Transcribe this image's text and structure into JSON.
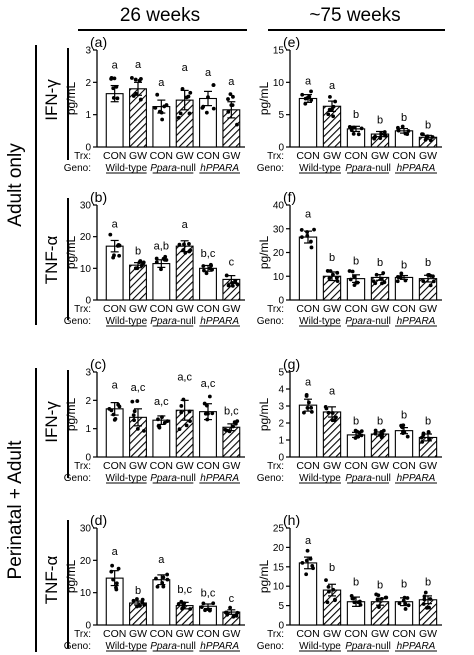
{
  "figure": {
    "col_titles": [
      "26 weeks",
      "~75 weeks"
    ],
    "group_labels": [
      "Adult only",
      "Perinatal + Adult"
    ],
    "row_labels": [
      "IFN-γ",
      "TNF-α",
      "IFN-γ",
      "TNF-α"
    ],
    "trx_label": "Trx:",
    "geno_label": "Geno:",
    "trx_values": [
      "CON",
      "GW"
    ],
    "genotypes": [
      {
        "pre": "",
        "it": "",
        "post": "Wild-type"
      },
      {
        "pre": "",
        "it": "Ppara",
        "post": "-null"
      },
      {
        "pre": "",
        "it": "hPPARA",
        "post": ""
      }
    ],
    "ylabel": "pg/mL"
  },
  "colors": {
    "bar_fill": "#ffffff",
    "hatch_fill": "#ffffff",
    "stroke": "#000000"
  },
  "chart_data": [
    {
      "panel": "(a)",
      "type": "bar",
      "ylabel": "pg/mL",
      "ylim": [
        0,
        3
      ],
      "ticks": [
        0,
        1,
        2,
        3
      ],
      "xlabels": [
        "CON",
        "GW",
        "CON",
        "GW",
        "CON",
        "GW"
      ],
      "values": [
        1.65,
        1.8,
        1.25,
        1.45,
        1.5,
        1.15
      ],
      "errors": [
        0.25,
        0.2,
        0.2,
        0.3,
        0.22,
        0.25
      ],
      "letters": [
        "a",
        "a",
        "a",
        "a",
        "a",
        "a"
      ],
      "hatched": [
        false,
        true,
        false,
        true,
        false,
        true
      ]
    },
    {
      "panel": "(e)",
      "type": "bar",
      "ylabel": "pg/mL",
      "ylim": [
        0,
        15
      ],
      "ticks": [
        0,
        5,
        10,
        15
      ],
      "xlabels": [
        "CON",
        "GW",
        "CON",
        "GW",
        "CON",
        "GW"
      ],
      "values": [
        7.5,
        6.3,
        2.8,
        2.0,
        2.5,
        1.5
      ],
      "errors": [
        0.6,
        0.8,
        0.4,
        0.4,
        0.35,
        0.3
      ],
      "letters": [
        "a",
        "a",
        "b",
        "b",
        "b",
        "b"
      ],
      "hatched": [
        false,
        true,
        false,
        true,
        false,
        true
      ]
    },
    {
      "panel": "(b)",
      "type": "bar",
      "ylabel": "pg/mL",
      "ylim": [
        0,
        30
      ],
      "ticks": [
        0,
        10,
        20,
        30
      ],
      "xlabels": [
        "CON",
        "GW",
        "CON",
        "GW",
        "CON",
        "GW"
      ],
      "values": [
        17,
        11,
        11.5,
        17,
        10,
        6.5
      ],
      "errors": [
        1.8,
        0.8,
        1.2,
        1.7,
        0.9,
        1.2
      ],
      "letters": [
        "a",
        "b",
        "a,b",
        "a",
        "b,c",
        "c"
      ],
      "hatched": [
        false,
        true,
        false,
        true,
        false,
        true
      ]
    },
    {
      "panel": "(f)",
      "type": "bar",
      "ylabel": "pg/mL",
      "ylim": [
        0,
        40
      ],
      "ticks": [
        0,
        10,
        20,
        30,
        40
      ],
      "xlabels": [
        "CON",
        "GW",
        "CON",
        "GW",
        "CON",
        "GW"
      ],
      "values": [
        26.5,
        10,
        9,
        9.5,
        9.5,
        9
      ],
      "errors": [
        2.5,
        1.8,
        1.6,
        1.2,
        0.8,
        1.4
      ],
      "letters": [
        "a",
        "b",
        "b",
        "b",
        "b",
        "b"
      ],
      "hatched": [
        false,
        true,
        false,
        true,
        false,
        true
      ]
    },
    {
      "panel": "(c)",
      "type": "bar",
      "ylabel": "pg/mL",
      "ylim": [
        0,
        3
      ],
      "ticks": [
        0,
        1,
        2,
        3
      ],
      "xlabels": [
        "CON",
        "GW",
        "CON",
        "GW",
        "CON",
        "GW"
      ],
      "values": [
        1.7,
        1.4,
        1.3,
        1.65,
        1.6,
        1.05
      ],
      "errors": [
        0.22,
        0.3,
        0.15,
        0.35,
        0.28,
        0.12
      ],
      "letters": [
        "a",
        "a,c",
        "a,c",
        "a,c",
        "a,c",
        "b,c"
      ],
      "hatched": [
        false,
        true,
        false,
        true,
        false,
        true
      ]
    },
    {
      "panel": "(g)",
      "type": "bar",
      "ylabel": "pg/mL",
      "ylim": [
        0,
        5
      ],
      "ticks": [
        0,
        1,
        2,
        3,
        4,
        5
      ],
      "xlabels": [
        "CON",
        "GW",
        "CON",
        "GW",
        "CON",
        "GW"
      ],
      "values": [
        3.05,
        2.65,
        1.3,
        1.35,
        1.55,
        1.15
      ],
      "errors": [
        0.35,
        0.3,
        0.15,
        0.12,
        0.18,
        0.2
      ],
      "letters": [
        "a",
        "a",
        "b",
        "b",
        "b",
        "b"
      ],
      "hatched": [
        false,
        true,
        false,
        true,
        false,
        true
      ]
    },
    {
      "panel": "(d)",
      "type": "bar",
      "ylabel": "pg/mL",
      "ylim": [
        0,
        30
      ],
      "ticks": [
        0,
        10,
        20,
        30
      ],
      "xlabels": [
        "CON",
        "GW",
        "CON",
        "GW",
        "CON",
        "GW"
      ],
      "values": [
        14.5,
        6.8,
        14,
        6,
        5.8,
        4
      ],
      "errors": [
        2.3,
        0.6,
        1.5,
        1.0,
        0.7,
        0.7
      ],
      "letters": [
        "a",
        "b",
        "a",
        "b,c",
        "b,c",
        "c"
      ],
      "hatched": [
        false,
        true,
        false,
        true,
        false,
        true
      ]
    },
    {
      "panel": "(h)",
      "type": "bar",
      "ylabel": "pg/mL",
      "ylim": [
        0,
        25
      ],
      "ticks": [
        0,
        5,
        10,
        15,
        20,
        25
      ],
      "xlabels": [
        "CON",
        "GW",
        "CON",
        "GW",
        "CON",
        "GW"
      ],
      "values": [
        16,
        9,
        6,
        6,
        6,
        6.5
      ],
      "errors": [
        1.5,
        1.5,
        1.2,
        0.9,
        1.0,
        1.0
      ],
      "letters": [
        "a",
        "b",
        "b",
        "b",
        "b",
        "b"
      ],
      "hatched": [
        false,
        true,
        false,
        true,
        false,
        true
      ]
    }
  ]
}
